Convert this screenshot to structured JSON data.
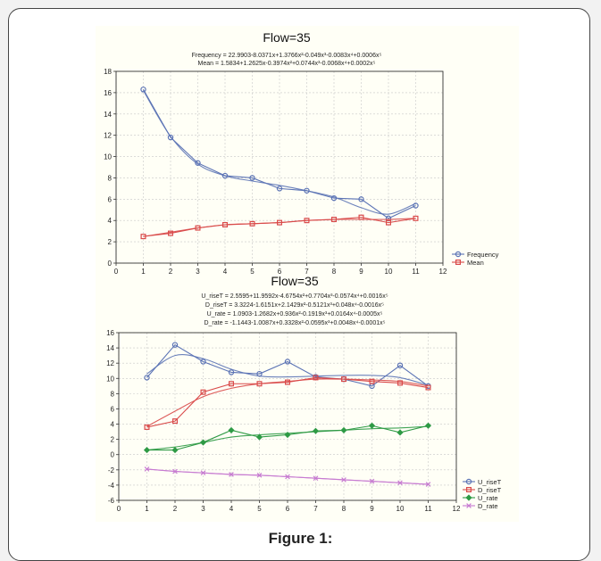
{
  "caption": "Figure 1:",
  "chart_data": [
    {
      "type": "line",
      "title": "Flow=35",
      "equations": [
        "Frequency = 22.9903-8.0371x+1.3766x²-0.049x³-0.0083x⁴+0.0006x⁵",
        "Mean = 1.5834+1.2625x-0.3974x²+0.0744x³-0.0068x⁴+0.0002x⁵"
      ],
      "xlim": [
        0,
        12
      ],
      "ylim": [
        0,
        18
      ],
      "xticks": [
        0,
        1,
        2,
        3,
        4,
        5,
        6,
        7,
        8,
        9,
        10,
        11,
        12
      ],
      "yticks": [
        0,
        2,
        4,
        6,
        8,
        10,
        12,
        14,
        16,
        18
      ],
      "grid": true,
      "legend_position": "bottom-right",
      "x": [
        1,
        2,
        3,
        4,
        5,
        6,
        7,
        8,
        9,
        10,
        11
      ],
      "series": [
        {
          "name": "Frequency",
          "color": "#5b73b5",
          "marker": "circle",
          "values": [
            16.3,
            11.8,
            9.4,
            8.2,
            8.0,
            7.0,
            6.8,
            6.1,
            6.0,
            4.2,
            5.4
          ],
          "fit": [
            16.2,
            11.9,
            9.3,
            8.2,
            7.7,
            7.3,
            6.8,
            6.2,
            5.2,
            4.6,
            5.6
          ]
        },
        {
          "name": "Mean",
          "color": "#d94a4a",
          "marker": "square",
          "values": [
            2.5,
            2.8,
            3.3,
            3.6,
            3.7,
            3.8,
            4.0,
            4.1,
            4.3,
            3.8,
            4.2
          ],
          "fit": [
            2.5,
            2.9,
            3.3,
            3.6,
            3.7,
            3.8,
            4.0,
            4.1,
            4.1,
            4.1,
            4.2
          ]
        }
      ]
    },
    {
      "type": "line",
      "title": "Flow=35",
      "equations": [
        "U_riseT = 2.5595+11.9592x-4.6754x²+0.7704x³-0.0574x⁴+0.0016x⁵",
        "D_riseT = 3.3224-1.6151x+2.1429x²-0.5121x³+0.048x⁴-0.0016x⁵",
        "U_rate = 1.0903-1.2682x+0.936x²-0.1919x³+0.0164x⁴-0.0005x⁵",
        "D_rate = -1.1443-1.0087x+0.3328x²-0.0595x³+0.0048x⁴-0.0001x⁵"
      ],
      "xlim": [
        0,
        12
      ],
      "ylim": [
        -6,
        16
      ],
      "xticks": [
        0,
        1,
        2,
        3,
        4,
        5,
        6,
        7,
        8,
        9,
        10,
        11,
        12
      ],
      "yticks": [
        -6,
        -4,
        -2,
        0,
        2,
        4,
        6,
        8,
        10,
        12,
        14,
        16
      ],
      "grid": true,
      "legend_position": "bottom-right",
      "x": [
        1,
        2,
        3,
        4,
        5,
        6,
        7,
        8,
        9,
        10,
        11
      ],
      "series": [
        {
          "name": "U_riseT",
          "color": "#5b73b5",
          "marker": "circle",
          "values": [
            10.1,
            14.4,
            12.2,
            10.8,
            10.6,
            12.2,
            10.2,
            9.9,
            9.0,
            11.7,
            9.0
          ],
          "fit": [
            10.6,
            13.0,
            12.6,
            11.2,
            10.3,
            10.2,
            10.3,
            10.4,
            10.4,
            10.1,
            9.1
          ]
        },
        {
          "name": "D_riseT",
          "color": "#d94a4a",
          "marker": "square",
          "values": [
            3.6,
            4.4,
            8.2,
            9.3,
            9.3,
            9.5,
            10.1,
            9.9,
            9.6,
            9.4,
            8.8
          ],
          "fit": [
            3.7,
            5.7,
            7.6,
            8.7,
            9.3,
            9.6,
            9.9,
            9.9,
            9.8,
            9.6,
            9.0
          ]
        },
        {
          "name": "U_rate",
          "color": "#2e9a45",
          "marker": "diamond",
          "values": [
            0.6,
            0.6,
            1.6,
            3.2,
            2.3,
            2.6,
            3.1,
            3.2,
            3.8,
            2.9,
            3.8
          ],
          "fit": [
            0.6,
            1.0,
            1.6,
            2.3,
            2.6,
            2.8,
            3.0,
            3.2,
            3.4,
            3.5,
            3.7
          ]
        },
        {
          "name": "D_rate",
          "color": "#c77bd1",
          "marker": "cross",
          "values": [
            -1.9,
            -2.2,
            -2.4,
            -2.6,
            -2.7,
            -2.9,
            -3.1,
            -3.3,
            -3.5,
            -3.7,
            -3.9
          ],
          "fit": [
            -1.9,
            -2.2,
            -2.4,
            -2.6,
            -2.7,
            -2.9,
            -3.1,
            -3.3,
            -3.5,
            -3.7,
            -3.9
          ]
        }
      ]
    }
  ]
}
